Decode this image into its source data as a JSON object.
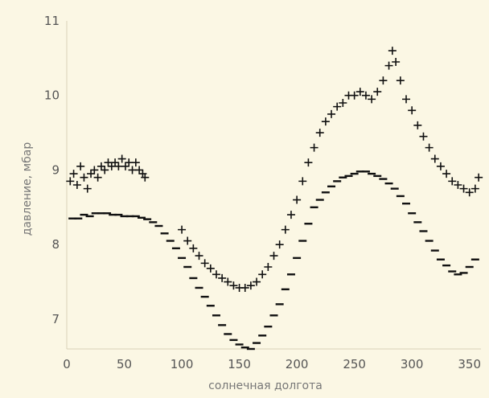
{
  "chart_data": {
    "type": "scatter",
    "title": "",
    "xlabel": "солнечная долгота",
    "ylabel": "давление, мбар",
    "xlim": [
      0,
      360
    ],
    "ylim": [
      6.6,
      11
    ],
    "xticks": [
      0,
      50,
      100,
      150,
      200,
      250,
      300,
      350
    ],
    "yticks": [
      7,
      8,
      9,
      10,
      11
    ],
    "grid": false,
    "legend": "none",
    "colors": {
      "background": "#fbf7e4",
      "marks": "#111111",
      "axis_text": "#555555"
    },
    "series": [
      {
        "marker": "plus",
        "points": [
          [
            3,
            8.85
          ],
          [
            6,
            8.95
          ],
          [
            9,
            8.8
          ],
          [
            12,
            9.05
          ],
          [
            15,
            8.9
          ],
          [
            18,
            8.75
          ],
          [
            21,
            8.95
          ],
          [
            24,
            9.0
          ],
          [
            27,
            8.9
          ],
          [
            30,
            9.05
          ],
          [
            33,
            9.0
          ],
          [
            36,
            9.1
          ],
          [
            39,
            9.05
          ],
          [
            42,
            9.1
          ],
          [
            45,
            9.05
          ],
          [
            48,
            9.15
          ],
          [
            51,
            9.05
          ],
          [
            54,
            9.1
          ],
          [
            57,
            9.0
          ],
          [
            60,
            9.1
          ],
          [
            63,
            9.0
          ],
          [
            66,
            8.95
          ],
          [
            68,
            8.9
          ],
          [
            100,
            8.2
          ],
          [
            105,
            8.05
          ],
          [
            110,
            7.95
          ],
          [
            115,
            7.85
          ],
          [
            120,
            7.75
          ],
          [
            125,
            7.68
          ],
          [
            130,
            7.6
          ],
          [
            135,
            7.55
          ],
          [
            140,
            7.5
          ],
          [
            145,
            7.45
          ],
          [
            150,
            7.42
          ],
          [
            155,
            7.42
          ],
          [
            160,
            7.45
          ],
          [
            165,
            7.5
          ],
          [
            170,
            7.6
          ],
          [
            175,
            7.7
          ],
          [
            180,
            7.85
          ],
          [
            185,
            8.0
          ],
          [
            190,
            8.2
          ],
          [
            195,
            8.4
          ],
          [
            200,
            8.6
          ],
          [
            205,
            8.85
          ],
          [
            210,
            9.1
          ],
          [
            215,
            9.3
          ],
          [
            220,
            9.5
          ],
          [
            225,
            9.65
          ],
          [
            230,
            9.75
          ],
          [
            235,
            9.85
          ],
          [
            240,
            9.9
          ],
          [
            245,
            10.0
          ],
          [
            250,
            10.0
          ],
          [
            255,
            10.05
          ],
          [
            260,
            10.0
          ],
          [
            265,
            9.95
          ],
          [
            270,
            10.05
          ],
          [
            275,
            10.2
          ],
          [
            280,
            10.4
          ],
          [
            283,
            10.6
          ],
          [
            286,
            10.45
          ],
          [
            290,
            10.2
          ],
          [
            295,
            9.95
          ],
          [
            300,
            9.8
          ],
          [
            305,
            9.6
          ],
          [
            310,
            9.45
          ],
          [
            315,
            9.3
          ],
          [
            320,
            9.15
          ],
          [
            325,
            9.05
          ],
          [
            330,
            8.95
          ],
          [
            335,
            8.85
          ],
          [
            340,
            8.8
          ],
          [
            345,
            8.75
          ],
          [
            350,
            8.7
          ],
          [
            355,
            8.75
          ],
          [
            358,
            8.9
          ]
        ]
      },
      {
        "marker": "dash",
        "points": [
          [
            5,
            8.35
          ],
          [
            10,
            8.35
          ],
          [
            15,
            8.4
          ],
          [
            20,
            8.38
          ],
          [
            25,
            8.42
          ],
          [
            30,
            8.42
          ],
          [
            35,
            8.42
          ],
          [
            40,
            8.4
          ],
          [
            45,
            8.4
          ],
          [
            50,
            8.38
          ],
          [
            55,
            8.38
          ],
          [
            60,
            8.38
          ],
          [
            65,
            8.36
          ],
          [
            70,
            8.34
          ],
          [
            75,
            8.3
          ],
          [
            80,
            8.25
          ],
          [
            85,
            8.15
          ],
          [
            90,
            8.05
          ],
          [
            95,
            7.95
          ],
          [
            100,
            7.82
          ],
          [
            105,
            7.7
          ],
          [
            110,
            7.55
          ],
          [
            115,
            7.42
          ],
          [
            120,
            7.3
          ],
          [
            125,
            7.18
          ],
          [
            130,
            7.05
          ],
          [
            135,
            6.92
          ],
          [
            140,
            6.8
          ],
          [
            145,
            6.72
          ],
          [
            150,
            6.66
          ],
          [
            155,
            6.62
          ],
          [
            160,
            6.6
          ],
          [
            165,
            6.68
          ],
          [
            170,
            6.78
          ],
          [
            175,
            6.9
          ],
          [
            180,
            7.05
          ],
          [
            185,
            7.2
          ],
          [
            190,
            7.4
          ],
          [
            195,
            7.6
          ],
          [
            200,
            7.82
          ],
          [
            205,
            8.05
          ],
          [
            210,
            8.28
          ],
          [
            215,
            8.5
          ],
          [
            220,
            8.6
          ],
          [
            225,
            8.7
          ],
          [
            230,
            8.78
          ],
          [
            235,
            8.85
          ],
          [
            240,
            8.9
          ],
          [
            245,
            8.92
          ],
          [
            250,
            8.95
          ],
          [
            255,
            8.98
          ],
          [
            260,
            8.98
          ],
          [
            265,
            8.95
          ],
          [
            270,
            8.92
          ],
          [
            275,
            8.88
          ],
          [
            280,
            8.82
          ],
          [
            285,
            8.75
          ],
          [
            290,
            8.65
          ],
          [
            295,
            8.55
          ],
          [
            300,
            8.42
          ],
          [
            305,
            8.3
          ],
          [
            310,
            8.18
          ],
          [
            315,
            8.05
          ],
          [
            320,
            7.92
          ],
          [
            325,
            7.8
          ],
          [
            330,
            7.72
          ],
          [
            335,
            7.64
          ],
          [
            340,
            7.6
          ],
          [
            345,
            7.62
          ],
          [
            350,
            7.7
          ],
          [
            355,
            7.8
          ]
        ]
      }
    ]
  }
}
